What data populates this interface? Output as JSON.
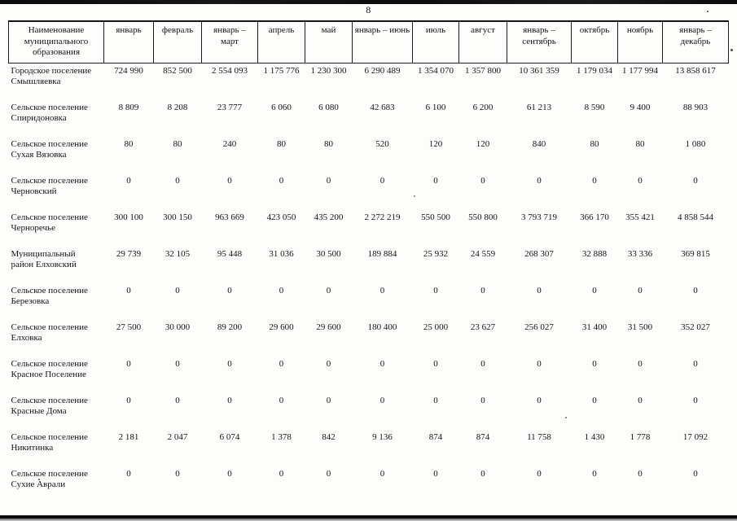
{
  "page": {
    "page_number": "8"
  },
  "table": {
    "columns": [
      "Наименование муниципального образования",
      "январь",
      "февраль",
      "январь – март",
      "апрель",
      "май",
      "январь – июнь",
      "июль",
      "август",
      "январь – сентябрь",
      "октябрь",
      "ноябрь",
      "январь – декабрь"
    ],
    "rows": [
      {
        "name": "Городское поселение Смышляевка",
        "values": [
          "724 990",
          "852 500",
          "2 554 093",
          "1 175 776",
          "1 230 300",
          "6 290 489",
          "1 354 070",
          "1 357 800",
          "10 361 359",
          "1 179 034",
          "1 177 994",
          "13 858 617"
        ]
      },
      {
        "name": "Сельское поселение Спиридоновка",
        "values": [
          "8 809",
          "8 208",
          "23 777",
          "6 060",
          "6 080",
          "42 683",
          "6 100",
          "6 200",
          "61 213",
          "8 590",
          "9 400",
          "88 903"
        ]
      },
      {
        "name": "Сельское поселение Сухая Вязовка",
        "values": [
          "80",
          "80",
          "240",
          "80",
          "80",
          "520",
          "120",
          "120",
          "840",
          "80",
          "80",
          "1 080"
        ]
      },
      {
        "name": "Сельское поселение Черновский",
        "values": [
          "0",
          "0",
          "0",
          "0",
          "0",
          "0",
          "0",
          "0",
          "0",
          "0",
          "0",
          "0"
        ]
      },
      {
        "name": "Сельское поселение Черноречье",
        "values": [
          "300 100",
          "300 150",
          "963 669",
          "423 050",
          "435 200",
          "2 272 219",
          "550 500",
          "550 800",
          "3 793 719",
          "366 170",
          "355 421",
          "4 858 544"
        ]
      },
      {
        "name": "Муниципальный район Елховский",
        "values": [
          "29 739",
          "32 105",
          "95 448",
          "31 036",
          "30 500",
          "189 884",
          "25 932",
          "24 559",
          "268 307",
          "32 888",
          "33 336",
          "369 815"
        ]
      },
      {
        "name": "Сельское поселение Березовка",
        "values": [
          "0",
          "0",
          "0",
          "0",
          "0",
          "0",
          "0",
          "0",
          "0",
          "0",
          "0",
          "0"
        ]
      },
      {
        "name": "Сельское поселение Елховка",
        "values": [
          "27 500",
          "30 000",
          "89 200",
          "29 600",
          "29 600",
          "180 400",
          "25 000",
          "23 627",
          "256 027",
          "31 400",
          "31 500",
          "352 027"
        ]
      },
      {
        "name": "Сельское поселение Красное Поселение",
        "values": [
          "0",
          "0",
          "0",
          "0",
          "0",
          "0",
          "0",
          "0",
          "0",
          "0",
          "0",
          "0"
        ]
      },
      {
        "name": "Сельское поселение Красные Дома",
        "values": [
          "0",
          "0",
          "0",
          "0",
          "0",
          "0",
          "0",
          "0",
          "0",
          "0",
          "0",
          "0"
        ]
      },
      {
        "name": "Сельское поселение Никитинка",
        "values": [
          "2 181",
          "2 047",
          "6 074",
          "1 378",
          "842",
          "9 136",
          "874",
          "874",
          "11 758",
          "1 430",
          "1 778",
          "17 092"
        ]
      },
      {
        "name": "Сельское поселение Сухие Аврали",
        "values": [
          "0",
          "0",
          "0",
          "0",
          "0",
          "0",
          "0",
          "0",
          "0",
          "0",
          "0",
          "0"
        ]
      }
    ]
  }
}
